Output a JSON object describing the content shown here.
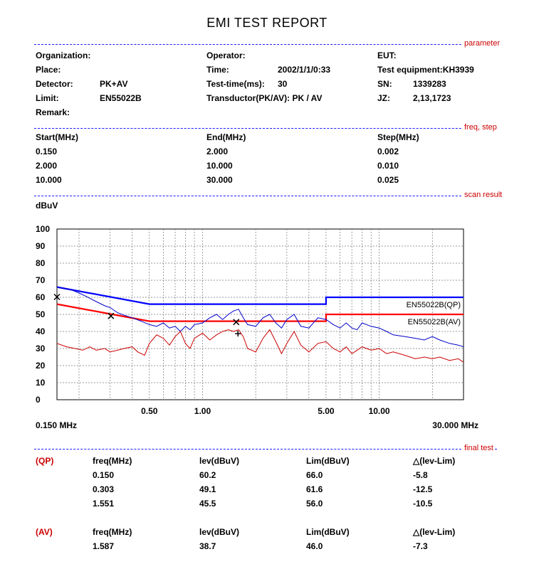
{
  "title": "EMI TEST REPORT",
  "sections": {
    "parameter": "parameter",
    "freq_step": "freq, step",
    "scan_result": "scan result",
    "final_test": "final test"
  },
  "parameter": {
    "organization_label": "Organization:",
    "organization_value": "",
    "place_label": "Place:",
    "detector_label": "Detector:",
    "detector_value": "PK+AV",
    "limit_label": "Limit:",
    "limit_value": "EN55022B",
    "remark_label": "Remark:",
    "operator_label": "Operator:",
    "time_label": "Time:",
    "time_value": "2002/1/1/0:33",
    "test_time_label": "Test-time(ms):",
    "test_time_value": "30",
    "transductor_label": "Transductor(PK/AV): PK  /  AV",
    "eut_label": "EUT:",
    "test_equipment_label": "Test equipment:KH3939",
    "sn_label": "SN:",
    "sn_value": "1339283",
    "jz_label": "JZ:",
    "jz_value": "2,13,1723"
  },
  "freq_step": {
    "headers": [
      "Start(MHz)",
      "End(MHz)",
      "Step(MHz)"
    ],
    "rows": [
      [
        "0.150",
        "2.000",
        "0.002"
      ],
      [
        "2.000",
        "10.000",
        "0.010"
      ],
      [
        "10.000",
        "30.000",
        "0.025"
      ]
    ]
  },
  "chart_data": {
    "type": "line",
    "ylabel": "dBuV",
    "xscale": "log",
    "xlim": [
      0.15,
      30
    ],
    "ylim": [
      0,
      100
    ],
    "yticks": [
      "0",
      "10",
      "20",
      "30",
      "40",
      "50",
      "60",
      "70",
      "80",
      "90",
      "100"
    ],
    "xticks": [
      {
        "value": 0.5,
        "label": "0.50"
      },
      {
        "value": 1,
        "label": "1.00"
      },
      {
        "value": 5,
        "label": "5.00"
      },
      {
        "value": 10,
        "label": "10.00"
      }
    ],
    "x_start_label": "0.150 MHz",
    "x_end_label": "30.000 MHz",
    "grid": true,
    "colors": {
      "qp": "#0000cc",
      "av": "#cc0000",
      "limit_qp": "#0000ff",
      "limit_av": "#ff0000",
      "marker": "#000000"
    },
    "series": [
      {
        "name": "EN55022B(QP)",
        "kind": "limit",
        "points": [
          [
            0.15,
            66
          ],
          [
            0.5,
            56
          ],
          [
            5,
            56
          ],
          [
            5,
            60
          ],
          [
            30,
            60
          ]
        ]
      },
      {
        "name": "EN55022B(AV)",
        "kind": "limit",
        "points": [
          [
            0.15,
            56
          ],
          [
            0.5,
            46
          ],
          [
            5,
            46
          ],
          [
            5,
            50
          ],
          [
            30,
            50
          ]
        ]
      },
      {
        "kind": "trace",
        "points": [
          [
            0.15,
            66
          ],
          [
            0.18,
            64.5
          ],
          [
            0.2,
            62.5
          ],
          [
            0.22,
            60.5
          ],
          [
            0.25,
            57.5
          ],
          [
            0.28,
            55
          ],
          [
            0.3,
            54
          ],
          [
            0.33,
            51
          ],
          [
            0.36,
            49.5
          ],
          [
            0.4,
            48
          ],
          [
            0.45,
            46
          ],
          [
            0.5,
            44
          ],
          [
            0.55,
            43
          ],
          [
            0.6,
            45
          ],
          [
            0.65,
            42
          ],
          [
            0.7,
            43
          ],
          [
            0.75,
            40
          ],
          [
            0.8,
            43
          ],
          [
            0.85,
            41
          ],
          [
            0.9,
            44
          ],
          [
            1.0,
            45
          ],
          [
            1.1,
            48
          ],
          [
            1.2,
            50
          ],
          [
            1.3,
            47
          ],
          [
            1.4,
            50
          ],
          [
            1.5,
            52
          ],
          [
            1.6,
            53
          ],
          [
            1.7,
            48
          ],
          [
            1.8,
            44
          ],
          [
            2.0,
            43
          ],
          [
            2.2,
            48
          ],
          [
            2.4,
            50
          ],
          [
            2.6,
            45
          ],
          [
            2.8,
            42
          ],
          [
            3.0,
            47
          ],
          [
            3.3,
            50
          ],
          [
            3.6,
            43
          ],
          [
            4.0,
            42
          ],
          [
            4.5,
            48
          ],
          [
            5.0,
            47
          ],
          [
            5.5,
            44
          ],
          [
            6.0,
            42
          ],
          [
            6.5,
            45
          ],
          [
            7.0,
            42
          ],
          [
            7.5,
            41
          ],
          [
            8.0,
            45
          ],
          [
            9.0,
            43
          ],
          [
            10,
            42
          ],
          [
            11,
            40
          ],
          [
            12,
            38
          ],
          [
            14,
            37
          ],
          [
            16,
            36
          ],
          [
            18,
            35
          ],
          [
            20,
            37
          ],
          [
            22,
            35
          ],
          [
            25,
            33
          ],
          [
            28,
            32
          ],
          [
            30,
            31
          ]
        ]
      },
      {
        "kind": "trace",
        "points": [
          [
            0.15,
            33
          ],
          [
            0.17,
            31
          ],
          [
            0.19,
            30
          ],
          [
            0.21,
            29
          ],
          [
            0.23,
            31
          ],
          [
            0.25,
            29
          ],
          [
            0.28,
            30
          ],
          [
            0.3,
            28
          ],
          [
            0.33,
            29
          ],
          [
            0.36,
            30
          ],
          [
            0.4,
            31
          ],
          [
            0.43,
            28
          ],
          [
            0.47,
            26
          ],
          [
            0.5,
            33
          ],
          [
            0.55,
            38
          ],
          [
            0.6,
            36
          ],
          [
            0.65,
            32
          ],
          [
            0.7,
            37
          ],
          [
            0.75,
            40
          ],
          [
            0.8,
            33
          ],
          [
            0.85,
            30
          ],
          [
            0.9,
            36
          ],
          [
            1.0,
            39
          ],
          [
            1.1,
            35
          ],
          [
            1.2,
            38
          ],
          [
            1.3,
            40
          ],
          [
            1.4,
            41
          ],
          [
            1.5,
            40
          ],
          [
            1.6,
            41
          ],
          [
            1.7,
            37
          ],
          [
            1.8,
            30
          ],
          [
            2.0,
            28
          ],
          [
            2.2,
            36
          ],
          [
            2.4,
            41
          ],
          [
            2.6,
            34
          ],
          [
            2.8,
            27
          ],
          [
            3.0,
            33
          ],
          [
            3.3,
            40
          ],
          [
            3.6,
            32
          ],
          [
            4.0,
            28
          ],
          [
            4.5,
            33
          ],
          [
            5.0,
            34
          ],
          [
            5.5,
            30
          ],
          [
            6.0,
            28
          ],
          [
            6.5,
            31
          ],
          [
            7.0,
            27
          ],
          [
            7.5,
            29
          ],
          [
            8.0,
            31
          ],
          [
            9.0,
            29
          ],
          [
            10,
            30
          ],
          [
            11,
            27
          ],
          [
            12,
            28
          ],
          [
            14,
            26
          ],
          [
            16,
            24
          ],
          [
            18,
            25
          ],
          [
            20,
            24
          ],
          [
            22,
            25
          ],
          [
            25,
            23
          ],
          [
            28,
            24
          ],
          [
            30,
            22
          ]
        ]
      }
    ],
    "markers": [
      {
        "x": 0.15,
        "y": 60.2,
        "symbol": "x"
      },
      {
        "x": 0.303,
        "y": 49.1,
        "symbol": "x"
      },
      {
        "x": 1.551,
        "y": 45.5,
        "symbol": "x"
      },
      {
        "x": 1.587,
        "y": 38.7,
        "symbol": "+"
      }
    ]
  },
  "final_test": {
    "qp": {
      "tag": "(QP)",
      "headers": [
        "freq(MHz)",
        "lev(dBuV)",
        "Lim(dBuV)",
        "△(lev-Lim)"
      ],
      "rows": [
        [
          "0.150",
          "60.2",
          "66.0",
          "-5.8"
        ],
        [
          "0.303",
          "49.1",
          "61.6",
          "-12.5"
        ],
        [
          "1.551",
          "45.5",
          "56.0",
          "-10.5"
        ]
      ]
    },
    "av": {
      "tag": "(AV)",
      "headers": [
        "freq(MHz)",
        "lev(dBuV)",
        "Lim(dBuV)",
        "△(lev-Lim)"
      ],
      "rows": [
        [
          "1.587",
          "38.7",
          "46.0",
          "-7.3"
        ]
      ]
    }
  }
}
